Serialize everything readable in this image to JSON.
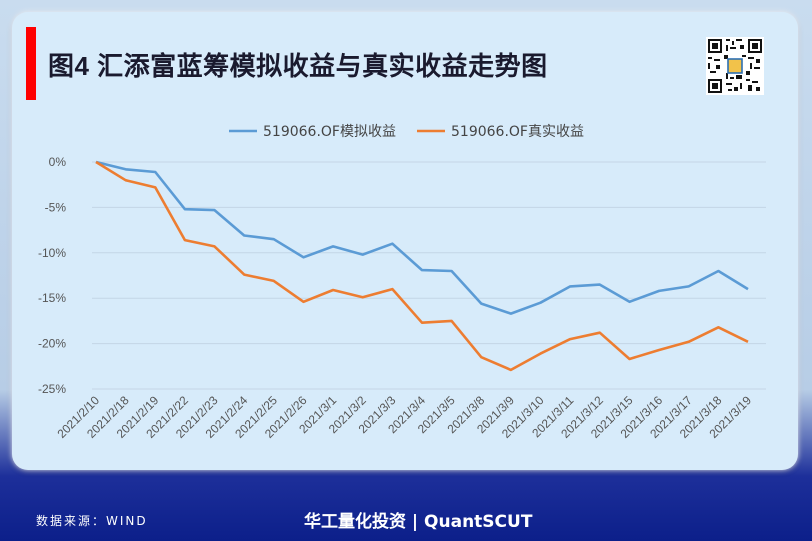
{
  "header": {
    "title": "图4 汇添富蓝筹模拟收益与真实收益走势图"
  },
  "footer": {
    "source": "数据来源：WIND",
    "brand": "华工量化投资 | QuantSCUT"
  },
  "colors": {
    "series_sim": "#5b9bd5",
    "series_real": "#ed7d31",
    "accent_bar": "#ff0000",
    "footer_bg": "#0c1f8a"
  },
  "chart_data": {
    "type": "line",
    "title": "",
    "xlabel": "",
    "ylabel": "",
    "ylim": [
      -25,
      0
    ],
    "yticks": [
      "0%",
      "-5%",
      "-10%",
      "-15%",
      "-20%",
      "-25%"
    ],
    "grid": true,
    "legend_position": "top-center",
    "x": [
      "2021/2/10",
      "2021/2/18",
      "2021/2/19",
      "2021/2/22",
      "2021/2/23",
      "2021/2/24",
      "2021/2/25",
      "2021/2/26",
      "2021/3/1",
      "2021/3/2",
      "2021/3/3",
      "2021/3/4",
      "2021/3/5",
      "2021/3/8",
      "2021/3/9",
      "2021/3/10",
      "2021/3/11",
      "2021/3/12",
      "2021/3/15",
      "2021/3/16",
      "2021/3/17",
      "2021/3/18",
      "2021/3/19"
    ],
    "series": [
      {
        "name": "519066.OF模拟收益",
        "values": [
          0,
          -0.8,
          -1.1,
          -5.2,
          -5.3,
          -8.1,
          -8.5,
          -10.5,
          -9.3,
          -10.2,
          -9.0,
          -11.9,
          -12.0,
          -15.6,
          -16.7,
          -15.5,
          -13.7,
          -13.5,
          -15.4,
          -14.2,
          -13.7,
          -12.0,
          -14.0
        ]
      },
      {
        "name": "519066.OF真实收益",
        "values": [
          0,
          -2.0,
          -2.8,
          -8.6,
          -9.3,
          -12.4,
          -13.1,
          -15.4,
          -14.1,
          -14.9,
          -14.0,
          -17.7,
          -17.5,
          -21.5,
          -22.9,
          -21.1,
          -19.5,
          -18.8,
          -21.7,
          -20.7,
          -19.8,
          -18.2,
          -19.8
        ]
      }
    ]
  }
}
